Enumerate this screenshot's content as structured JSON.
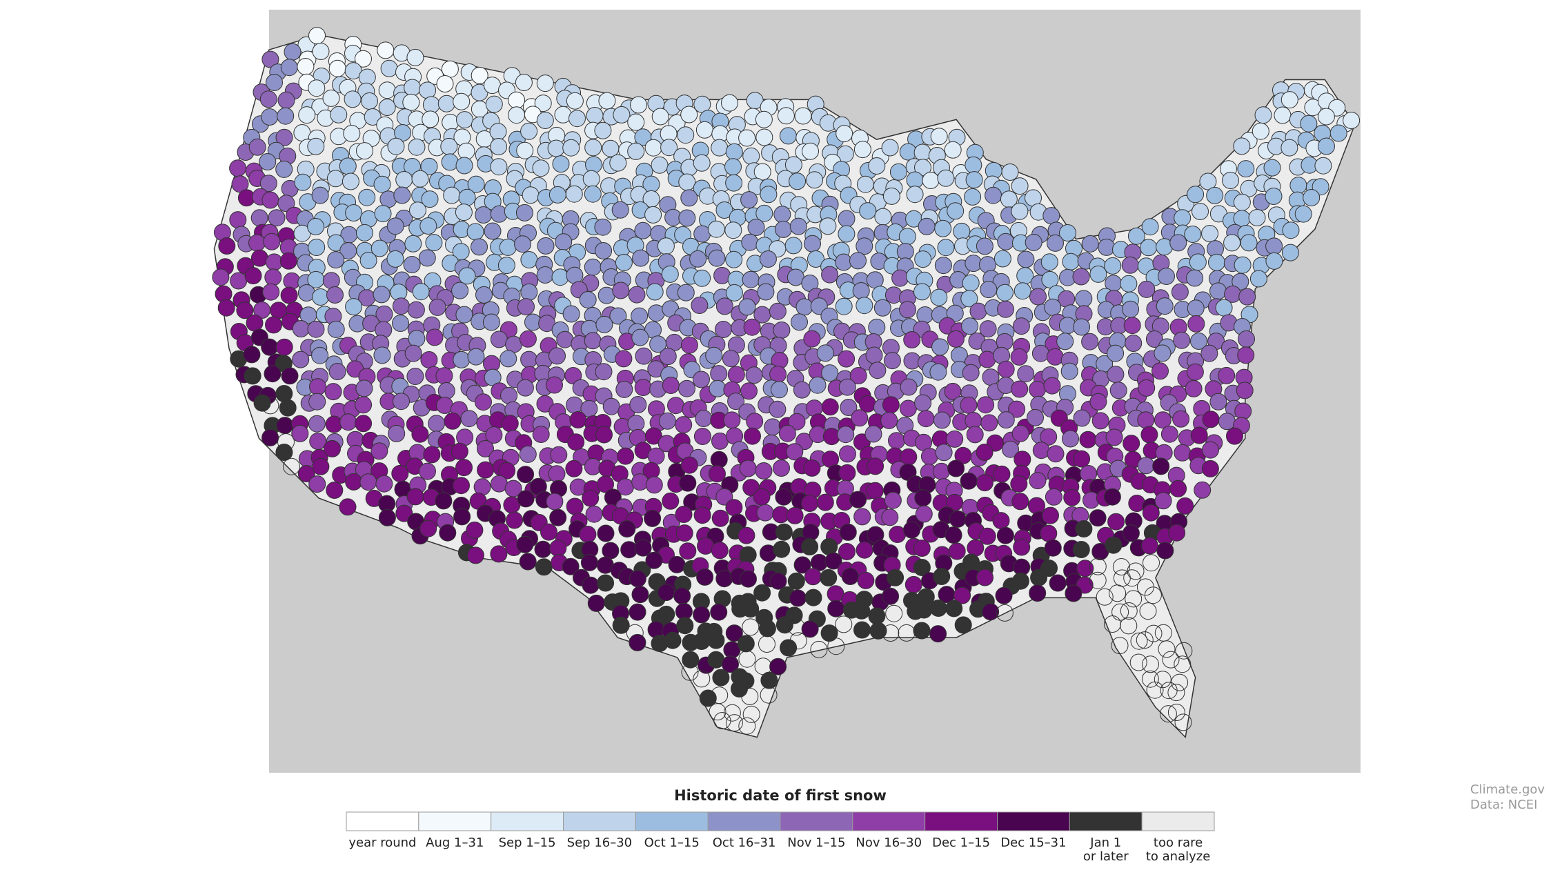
{
  "legend": {
    "title": "Historic date of first snow",
    "items": [
      {
        "label": [
          "year round"
        ],
        "color": "#ffffff"
      },
      {
        "label": [
          "Aug 1–31"
        ],
        "color": "#f4f9fd"
      },
      {
        "label": [
          "Sep 1–15"
        ],
        "color": "#ddebf7"
      },
      {
        "label": [
          "Sep 16–30"
        ],
        "color": "#bfd4ea"
      },
      {
        "label": [
          "Oct 1–15"
        ],
        "color": "#9dbde0"
      },
      {
        "label": [
          "Oct 16–31"
        ],
        "color": "#8d93c8"
      },
      {
        "label": [
          "Nov 1–15"
        ],
        "color": "#8e66b6"
      },
      {
        "label": [
          "Nov 16–30"
        ],
        "color": "#8e3ea6"
      },
      {
        "label": [
          "Dec 1–15"
        ],
        "color": "#7a0f80"
      },
      {
        "label": [
          "Dec 15–31"
        ],
        "color": "#4a0550"
      },
      {
        "label": [
          "Jan 1",
          "or later"
        ],
        "color": "#333333"
      },
      {
        "label": [
          "too rare",
          "to analyze"
        ],
        "color": "#ebebeb"
      }
    ]
  },
  "credit": {
    "source": "Climate.gov",
    "data": "Data: NCEI"
  }
}
